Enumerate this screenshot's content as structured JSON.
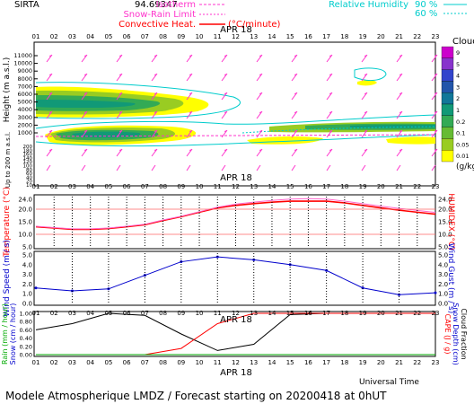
{
  "header": {
    "site": "SIRTA",
    "code": "94.69347",
    "legend_left": [
      {
        "label": "Isotherm",
        "color": "#ff33cc"
      },
      {
        "label": "Snow-Rain Limit",
        "color": "#ff33cc"
      },
      {
        "label": "Convective Heat.",
        "color": "#ff0000",
        "unit": "(°C/minute)"
      }
    ],
    "legend_right": [
      {
        "label": "Relative Humidity",
        "value": "90 %",
        "color": "#00cccc"
      },
      {
        "label": "",
        "value": "60 %",
        "color": "#00cccc"
      }
    ]
  },
  "date_label": "APR 18",
  "hours": [
    "01",
    "02",
    "03",
    "04",
    "05",
    "06",
    "07",
    "08",
    "09",
    "10",
    "11",
    "12",
    "13",
    "14",
    "15",
    "16",
    "17",
    "18",
    "19",
    "20",
    "21",
    "22",
    "23"
  ],
  "footer": {
    "universal_time": "Universal Time",
    "title": "Modele Atmospherique LMDZ / Forecast starting on 20200418 at 0hUT"
  },
  "clouds_colorbar": {
    "title": "Clouds",
    "unit": "(g/kg)",
    "levels": [
      "9",
      "5",
      "4",
      "3",
      "2",
      "1",
      "0.2",
      "0.1",
      "0.05",
      "0.01"
    ],
    "colors": [
      "#cc00cc",
      "#8833cc",
      "#3344cc",
      "#2255aa",
      "#117799",
      "#119977",
      "#33aa55",
      "#66bb33",
      "#99cc22",
      "#ffff00"
    ]
  },
  "chart_data": [
    {
      "type": "heatmap",
      "name": "clouds_height",
      "ylabel": "Height (m a.s.l.)",
      "ylabel2": "Up to 200 m a.s.l.",
      "yticks_upper": [
        "11000",
        "10000",
        "9000",
        "8000",
        "7000",
        "6000",
        "5000",
        "4000",
        "3000",
        "2000",
        "1000"
      ],
      "yticks_lower": [
        "200",
        "180",
        "160",
        "140",
        "120",
        "100",
        "80",
        "60",
        "40",
        "20",
        "10"
      ],
      "features": [
        "cirrus",
        "mid-level cloud 5000-7000 m",
        "low cloud ~2500 m",
        "cloud ~3500 m hours 15-23"
      ]
    },
    {
      "type": "line",
      "name": "temperature",
      "ylabel": "Temperature (°C)",
      "ylabel2": "HUMIDEX (°C)",
      "ylim": [
        5,
        25
      ],
      "yticks": [
        "24.0",
        "20.0",
        "15.0",
        "10.0",
        "5.0"
      ],
      "x": [
        "01",
        "02",
        "03",
        "04",
        "05",
        "06",
        "07",
        "08",
        "09",
        "10",
        "11",
        "12",
        "13",
        "14",
        "15",
        "16",
        "17",
        "18",
        "19",
        "20",
        "21",
        "22",
        "23"
      ],
      "series": [
        {
          "name": "Temperature",
          "color": "#ff0000",
          "values": [
            13.0,
            12.5,
            12.0,
            12.0,
            12.3,
            13.0,
            13.8,
            15.5,
            17.0,
            18.8,
            20.5,
            21.5,
            22.2,
            22.8,
            23.2,
            23.2,
            23.2,
            22.5,
            21.5,
            20.5,
            19.6,
            18.8,
            18.0
          ]
        },
        {
          "name": "HUMIDEX",
          "color": "#ff66cc",
          "values": [
            13.2,
            12.7,
            12.2,
            12.2,
            12.5,
            13.2,
            14.0,
            15.7,
            17.2,
            19.0,
            20.8,
            22.0,
            22.8,
            23.5,
            24.0,
            24.2,
            24.0,
            23.2,
            22.2,
            21.2,
            20.3,
            19.5,
            18.7
          ]
        }
      ]
    },
    {
      "type": "line",
      "name": "wind",
      "ylabel": "Wind Speed (m / s)",
      "ylabel2": "Wind Gust (m / s)",
      "ylim": [
        0,
        5
      ],
      "yticks": [
        "5.0",
        "4.0",
        "3.0",
        "2.0",
        "1.0",
        "0.0"
      ],
      "x": [
        "01",
        "03",
        "05",
        "07",
        "09",
        "11",
        "13",
        "15",
        "17",
        "19",
        "21",
        "23"
      ],
      "series": [
        {
          "name": "Wind Speed",
          "color": "#0000cc",
          "values": [
            1.6,
            1.3,
            1.5,
            2.9,
            4.3,
            4.8,
            4.5,
            4.0,
            3.4,
            1.6,
            0.9,
            1.1
          ]
        }
      ]
    },
    {
      "type": "line",
      "name": "precip",
      "ylabel_left": [
        "Rain (mm / hour)",
        "Snow (cm / hour)"
      ],
      "ylabel_right": [
        "CAPE (J / g)",
        "Snow Depth (cm)",
        "Cloud Fraction"
      ],
      "ylim": [
        0,
        1
      ],
      "yticks": [
        "1.00",
        "0.80",
        "0.60",
        "0.40",
        "0.20",
        "0.00"
      ],
      "x": [
        "01",
        "03",
        "05",
        "07",
        "09",
        "11",
        "13",
        "15",
        "17",
        "19",
        "21",
        "23"
      ],
      "series": [
        {
          "name": "Cloud Fraction",
          "color": "#000000",
          "values": [
            0.6,
            0.75,
            1.0,
            0.95,
            0.5,
            0.1,
            0.25,
            0.97,
            1.0,
            1.0,
            1.0,
            1.0
          ]
        },
        {
          "name": "CAPE",
          "color": "#ff0000",
          "values": [
            0.0,
            0.0,
            0.0,
            0.0,
            0.15,
            0.75,
            1.0,
            1.0,
            1.0,
            1.0,
            1.0,
            1.0
          ]
        },
        {
          "name": "Rain",
          "color": "#00aa00",
          "values": [
            0,
            0,
            0,
            0,
            0,
            0,
            0,
            0,
            0,
            0,
            0,
            0
          ]
        }
      ]
    }
  ]
}
